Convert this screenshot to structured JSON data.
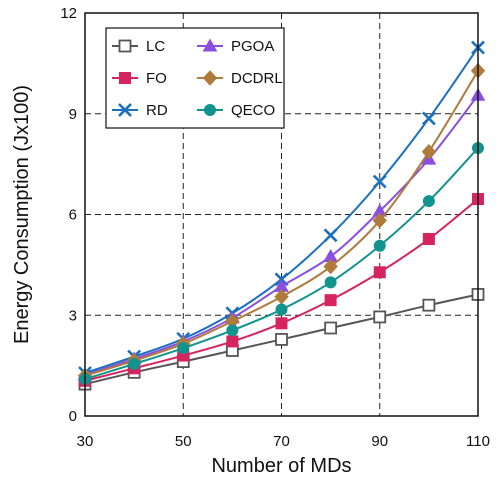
{
  "chart_data": {
    "type": "line",
    "xlabel": "Number of MDs",
    "ylabel": "Energy Consumption (Jx100)",
    "x": [
      30,
      40,
      50,
      60,
      70,
      80,
      90,
      100,
      110
    ],
    "xlim": [
      30,
      110
    ],
    "ylim": [
      0,
      12
    ],
    "xticks": [
      "30",
      "50",
      "70",
      "90",
      "110"
    ],
    "yticks": [
      "0",
      "3",
      "6",
      "9",
      "12"
    ],
    "grid": "dashed at x = 50, 70, 90 and y = 3, 6, 9",
    "legend_position": "top-left",
    "series": [
      {
        "name": "LC",
        "marker": "square-open",
        "color": "#555555",
        "values": [
          0.95,
          1.3,
          1.62,
          1.95,
          2.28,
          2.62,
          2.95,
          3.3,
          3.62
        ]
      },
      {
        "name": "FO",
        "marker": "square",
        "color": "#d6245f",
        "values": [
          1.05,
          1.42,
          1.8,
          2.22,
          2.76,
          3.45,
          4.28,
          5.27,
          6.46
        ]
      },
      {
        "name": "RD",
        "marker": "x",
        "color": "#1a6fbf",
        "values": [
          1.28,
          1.77,
          2.3,
          3.06,
          4.07,
          5.38,
          6.98,
          8.86,
          10.97
        ]
      },
      {
        "name": "PGOA",
        "marker": "triangle",
        "color": "#8a4fe0",
        "values": [
          1.22,
          1.7,
          2.22,
          2.92,
          3.86,
          4.75,
          6.1,
          7.65,
          9.55
        ]
      },
      {
        "name": "DCDRL",
        "marker": "diamond",
        "color": "#b07a3a",
        "values": [
          1.2,
          1.65,
          2.15,
          2.82,
          3.55,
          4.45,
          5.82,
          7.87,
          10.28
        ]
      },
      {
        "name": "QECO",
        "marker": "circle",
        "color": "#12938d",
        "values": [
          1.1,
          1.55,
          2.02,
          2.55,
          3.17,
          3.98,
          5.07,
          6.4,
          7.98
        ]
      }
    ]
  }
}
